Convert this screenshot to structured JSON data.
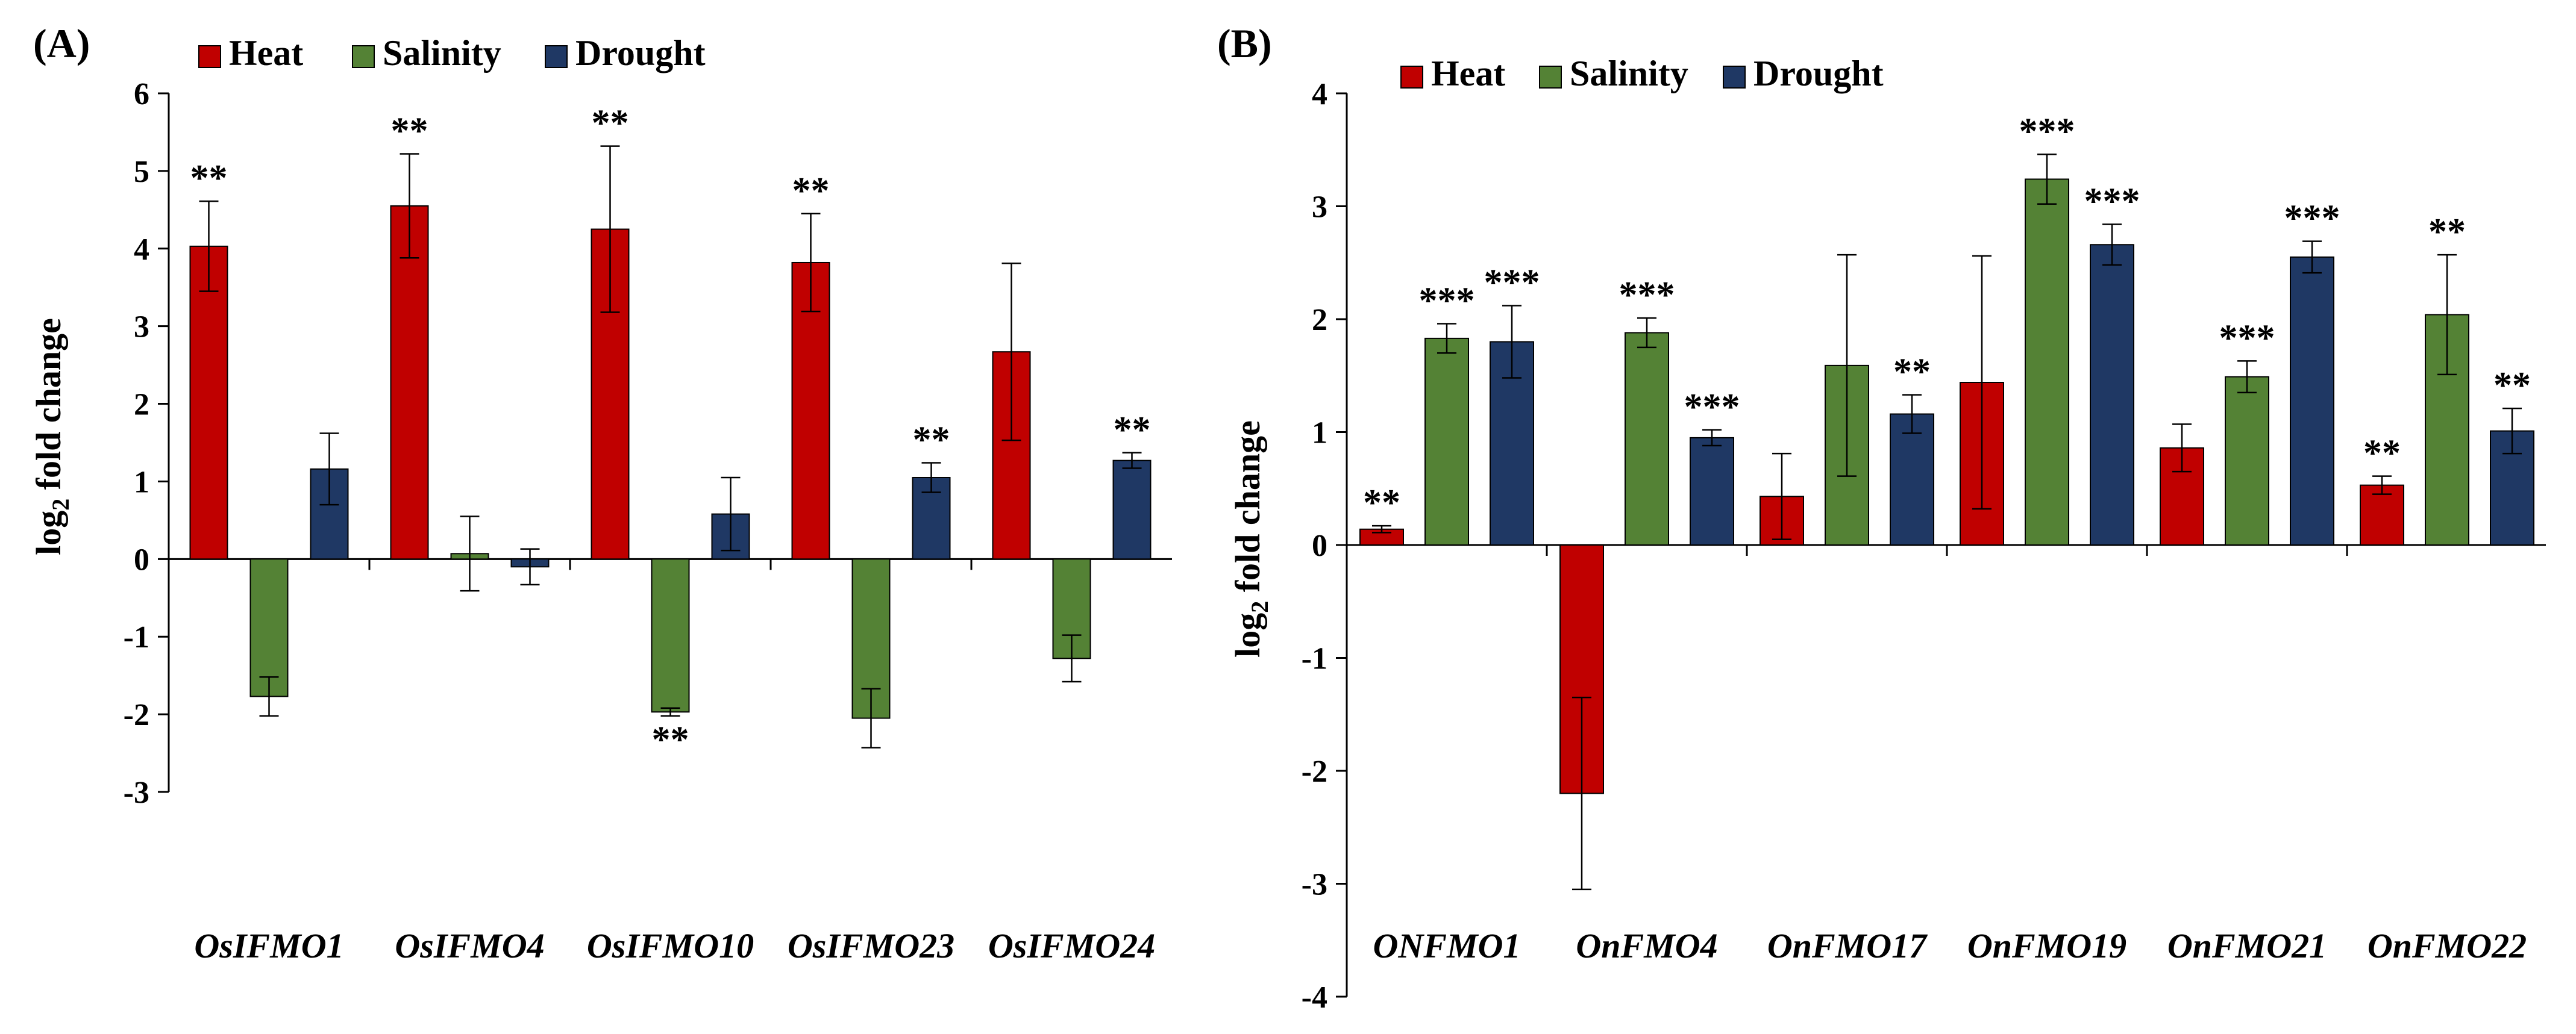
{
  "chart_data": [
    {
      "type": "bar",
      "panel_label": "(A)",
      "title": "",
      "xlabel": "",
      "ylabel_main": "log",
      "ylabel_sub": "2",
      "ylabel_rest": " fold change",
      "ylim": [
        -3,
        6
      ],
      "yticks": [
        "-3",
        "-2",
        "-1",
        "0",
        "1",
        "2",
        "3",
        "4",
        "5",
        "6"
      ],
      "grid": false,
      "legend_position": "top",
      "categories": [
        "OsIFMO1",
        "OsIFMO4",
        "OsIFMO10",
        "OsIFMO23",
        "OsIFMO24"
      ],
      "series": [
        {
          "name": "Heat",
          "color": "#c00000",
          "values": [
            4.03,
            4.55,
            4.25,
            3.82,
            2.67
          ],
          "errors": [
            0.58,
            0.67,
            1.07,
            0.63,
            1.14
          ],
          "annotations": [
            "**",
            "**",
            "**",
            "**",
            ""
          ]
        },
        {
          "name": "Salinity",
          "color": "#548235",
          "values": [
            -1.77,
            0.07,
            -1.97,
            -2.05,
            -1.28
          ],
          "errors": [
            0.25,
            0.48,
            0.05,
            0.38,
            0.3
          ],
          "annotations": [
            "",
            "",
            "**",
            "",
            ""
          ]
        },
        {
          "name": "Drought",
          "color": "#1f3864",
          "values": [
            1.16,
            -0.1,
            0.58,
            1.05,
            1.27
          ],
          "errors": [
            0.46,
            0.23,
            0.47,
            0.19,
            0.1
          ],
          "annotations": [
            "",
            "",
            "",
            "**",
            "**"
          ]
        }
      ]
    },
    {
      "type": "bar",
      "panel_label": "(B)",
      "title": "",
      "xlabel": "",
      "ylabel_main": "log",
      "ylabel_sub": "2",
      "ylabel_rest": " fold change",
      "ylim": [
        -4,
        4
      ],
      "yticks": [
        "-4",
        "-3",
        "-2",
        "-1",
        "0",
        "1",
        "2",
        "3",
        "4"
      ],
      "grid": false,
      "legend_position": "top",
      "categories": [
        "ONFMO1",
        "OnFMO4",
        "OnFMO17",
        "OnFMO19",
        "OnFMO21",
        "OnFMO22"
      ],
      "series": [
        {
          "name": "Heat",
          "color": "#c00000",
          "values": [
            0.14,
            -2.2,
            0.43,
            1.44,
            0.86,
            0.53
          ],
          "errors": [
            0.03,
            0.85,
            0.38,
            1.12,
            0.21,
            0.08
          ],
          "annotations": [
            "**",
            "",
            "",
            "",
            "",
            "**"
          ]
        },
        {
          "name": "Salinity",
          "color": "#548235",
          "values": [
            1.83,
            1.88,
            1.59,
            3.24,
            1.49,
            2.04
          ],
          "errors": [
            0.13,
            0.13,
            0.98,
            0.22,
            0.14,
            0.53
          ],
          "annotations": [
            "***",
            "***",
            "",
            "***",
            "***",
            "**"
          ]
        },
        {
          "name": "Drought",
          "color": "#1f3864",
          "values": [
            1.8,
            0.95,
            1.16,
            2.66,
            2.55,
            1.01
          ],
          "errors": [
            0.32,
            0.07,
            0.17,
            0.18,
            0.14,
            0.2
          ],
          "annotations": [
            "***",
            "***",
            "**",
            "***",
            "***",
            "**"
          ]
        }
      ]
    }
  ]
}
